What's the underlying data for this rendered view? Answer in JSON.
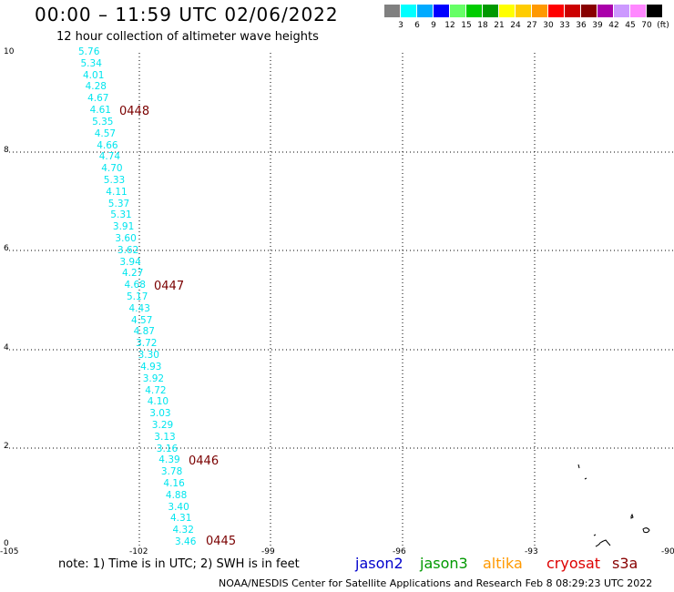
{
  "header": {
    "title": "00:00 – 11:59 UTC 02/06/2022",
    "subtitle": "12 hour collection of altimeter wave heights"
  },
  "colorbar": {
    "colors": [
      "#808080",
      "#00ffff",
      "#00aaff",
      "#0000ff",
      "#66ff66",
      "#00cc00",
      "#009900",
      "#ffff00",
      "#ffcc00",
      "#ff9900",
      "#ff0000",
      "#cc0000",
      "#880000",
      "#aa00aa",
      "#cc99ff",
      "#ff88ff",
      "#000000"
    ],
    "labels": [
      "3",
      "6",
      "9",
      "12",
      "15",
      "18",
      "21",
      "24",
      "27",
      "30",
      "33",
      "36",
      "39",
      "42",
      "45",
      "70"
    ],
    "unit": "(ft)"
  },
  "axes": {
    "lon_labels": [
      "-105",
      "-102",
      "-99",
      "-96",
      "-93",
      "-90"
    ],
    "lat_labels": [
      "10",
      "8",
      "6",
      "4",
      "2",
      "0"
    ]
  },
  "wave_heights": [
    "5.76",
    "5.34",
    "4.01",
    "4.28",
    "4.67",
    "4.61",
    "5.35",
    "4.57",
    "4.66",
    "4.74",
    "4.70",
    "5.33",
    "4.11",
    "5.37",
    "5.31",
    "3.91",
    "3.60",
    "3.62",
    "3.94",
    "4.27",
    "4.68",
    "5.17",
    "4.43",
    "4.57",
    "4.87",
    "3.72",
    "3.30",
    "4.93",
    "3.92",
    "4.72",
    "4.10",
    "3.03",
    "3.29",
    "3.13",
    "3.16",
    "4.39",
    "3.78",
    "4.16",
    "4.88",
    "3.40",
    "4.31",
    "4.32",
    "3.46"
  ],
  "pass_labels": [
    "0448",
    "0447",
    "0446",
    "0445"
  ],
  "legend": {
    "note": "note: 1) Time is in UTC; 2) SWH is in feet",
    "satellites": [
      {
        "name": "jason2",
        "color": "#0000cc"
      },
      {
        "name": "jason3",
        "color": "#009900"
      },
      {
        "name": "altika",
        "color": "#ff9900"
      },
      {
        "name": "cryosat",
        "color": "#dd0000"
      },
      {
        "name": "s3a",
        "color": "#880000"
      }
    ]
  },
  "credit": "NOAA/NESDIS Center for Satellite Applications and Research   Feb  8 08:29:23 UTC 2022"
}
